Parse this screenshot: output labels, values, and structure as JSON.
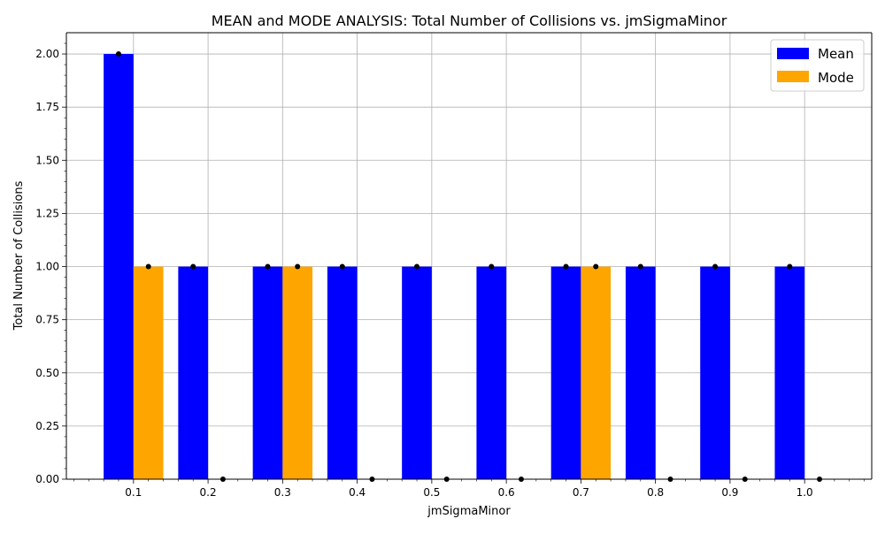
{
  "chart_data": {
    "type": "bar",
    "title": "MEAN and MODE ANALYSIS: Total Number of Collisions vs. jmSigmaMinor",
    "xlabel": "jmSigmaMinor",
    "ylabel": "Total Number of Collisions",
    "categories": [
      "0.1",
      "0.2",
      "0.3",
      "0.4",
      "0.5",
      "0.6",
      "0.7",
      "0.8",
      "0.9",
      "1.0"
    ],
    "series": [
      {
        "name": "Mean",
        "color": "#0000ff",
        "values": [
          2,
          1,
          1,
          1,
          1,
          1,
          1,
          1,
          1,
          1
        ]
      },
      {
        "name": "Mode",
        "color": "#ffa500",
        "values": [
          1,
          0,
          1,
          0,
          0,
          0,
          1,
          0,
          0,
          0
        ]
      }
    ],
    "ylim": [
      0,
      2.1
    ],
    "yticks": [
      "0.00",
      "0.25",
      "0.50",
      "0.75",
      "1.00",
      "1.25",
      "1.50",
      "1.75",
      "2.00"
    ],
    "grid": true,
    "legend_position": "top-right",
    "marker_color": "#000000"
  }
}
